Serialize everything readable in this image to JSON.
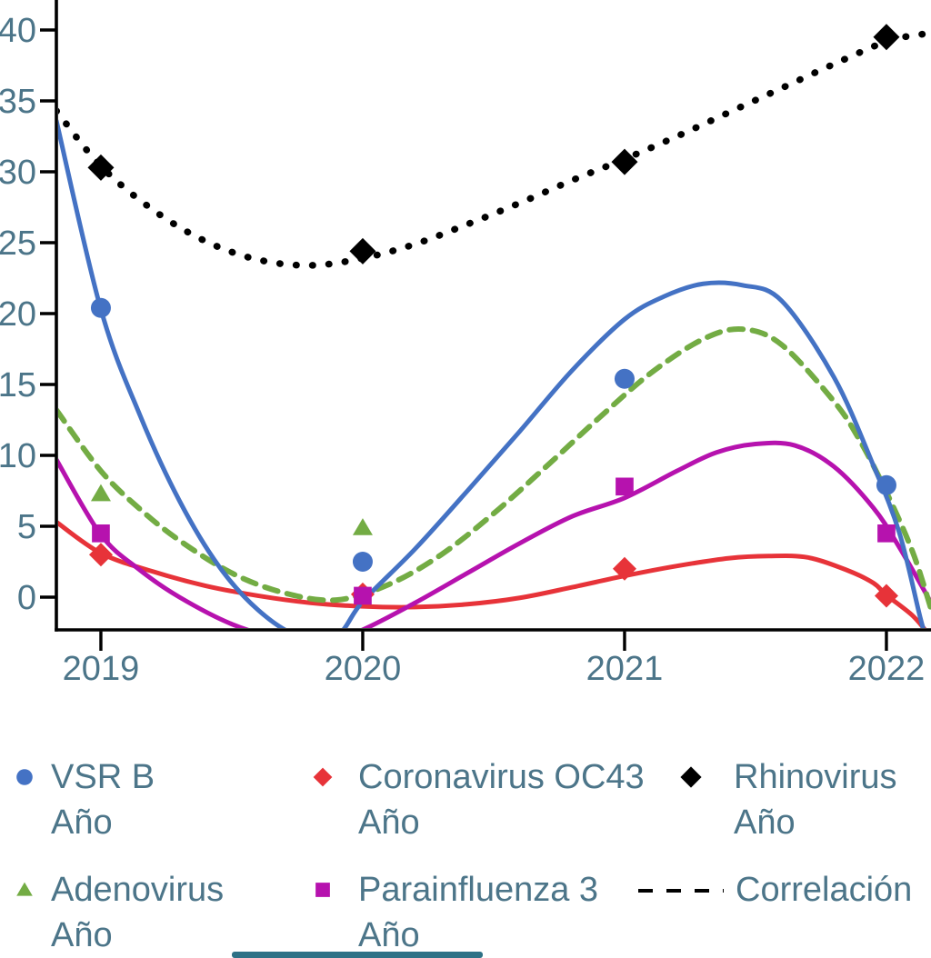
{
  "colors": {
    "background": "#ffffff",
    "axis_line": "#000000",
    "axis_text": "#4c7589",
    "legend_text": "#4c7589",
    "bottom_bar": "#2e7186"
  },
  "axes": {
    "x_ticks": [
      "2019",
      "2020",
      "2021",
      "2022"
    ],
    "y_ticks": [
      "0",
      "5",
      "10",
      "15",
      "20",
      "25",
      "30",
      "35",
      "40"
    ]
  },
  "chart_data": {
    "type": "scatter",
    "title": "",
    "xlabel": "",
    "ylabel": "",
    "grid": false,
    "legend_position": "bottom",
    "x_categories": [
      2019,
      2020,
      2021,
      2022
    ],
    "xlim": [
      2018.83,
      2022.18
    ],
    "ylim": [
      -2.3,
      42.1
    ],
    "y_ticks": [
      0,
      5,
      10,
      15,
      20,
      25,
      30,
      35,
      40
    ],
    "series": [
      {
        "name": "VSR B",
        "sublabel": "Año",
        "color": "#4472c4",
        "marker": "circle",
        "marker_size": 11,
        "line": "solid",
        "values": [
          20.4,
          2.5,
          15.4,
          7.9
        ],
        "trend": [
          [
            2018.83,
            33.6
          ],
          [
            2019.0,
            20.3
          ],
          [
            2019.15,
            12.8
          ],
          [
            2019.3,
            6.8
          ],
          [
            2019.45,
            2.2
          ],
          [
            2019.6,
            -0.9
          ],
          [
            2019.75,
            -2.7
          ],
          [
            2019.9,
            -2.7
          ],
          [
            2020.0,
            -0.3
          ],
          [
            2020.2,
            3.4
          ],
          [
            2020.4,
            7.5
          ],
          [
            2020.6,
            11.7
          ],
          [
            2020.8,
            16.0
          ],
          [
            2021.0,
            19.6
          ],
          [
            2021.15,
            21.2
          ],
          [
            2021.3,
            22.1
          ],
          [
            2021.45,
            22.0
          ],
          [
            2021.6,
            20.9
          ],
          [
            2021.8,
            15.5
          ],
          [
            2021.95,
            9.3
          ],
          [
            2022.05,
            4.5
          ],
          [
            2022.13,
            -1.5
          ],
          [
            2022.15,
            -2.7
          ]
        ]
      },
      {
        "name": "Coronavirus OC43",
        "sublabel": "Año",
        "color": "#e73339",
        "marker": "diamond",
        "marker_size": 13,
        "line": "solid",
        "values": [
          3.0,
          0.2,
          2.0,
          0.1
        ],
        "trend": [
          [
            2018.83,
            5.3
          ],
          [
            2019.0,
            3.1
          ],
          [
            2019.2,
            1.8
          ],
          [
            2019.4,
            0.8
          ],
          [
            2019.6,
            0.1
          ],
          [
            2019.8,
            -0.4
          ],
          [
            2020.0,
            -0.65
          ],
          [
            2020.2,
            -0.7
          ],
          [
            2020.4,
            -0.5
          ],
          [
            2020.6,
            -0.05
          ],
          [
            2020.8,
            0.7
          ],
          [
            2021.0,
            1.5
          ],
          [
            2021.2,
            2.2
          ],
          [
            2021.4,
            2.75
          ],
          [
            2021.55,
            2.9
          ],
          [
            2021.7,
            2.8
          ],
          [
            2021.85,
            1.9
          ],
          [
            2021.95,
            1.0
          ],
          [
            2022.0,
            0.15
          ],
          [
            2022.1,
            -1.3
          ],
          [
            2022.16,
            -2.6
          ]
        ]
      },
      {
        "name": "Rhinovirus",
        "sublabel": "Año",
        "color": "#000000",
        "marker": "diamond",
        "marker_size": 14.5,
        "line": "dotted",
        "values": [
          30.3,
          24.4,
          30.7,
          39.5
        ],
        "trend": [
          [
            2018.83,
            34.3
          ],
          [
            2019.0,
            30.4
          ],
          [
            2019.2,
            27.3
          ],
          [
            2019.4,
            25.1
          ],
          [
            2019.6,
            23.8
          ],
          [
            2019.8,
            23.4
          ],
          [
            2020.0,
            23.9
          ],
          [
            2020.2,
            24.9
          ],
          [
            2020.4,
            26.3
          ],
          [
            2020.6,
            27.8
          ],
          [
            2020.8,
            29.4
          ],
          [
            2021.0,
            30.9
          ],
          [
            2021.2,
            32.5
          ],
          [
            2021.4,
            34.2
          ],
          [
            2021.6,
            35.9
          ],
          [
            2021.8,
            37.6
          ],
          [
            2022.0,
            39.2
          ],
          [
            2022.1,
            39.6
          ],
          [
            2022.18,
            39.8
          ]
        ]
      },
      {
        "name": "Adenovirus",
        "sublabel": "Año",
        "color": "#73ac44",
        "marker": "triangle",
        "marker_size": 11,
        "line": "dashed",
        "values": [
          7.3,
          4.9,
          null,
          null
        ],
        "trend": [
          [
            2018.83,
            13.2
          ],
          [
            2019.0,
            8.9
          ],
          [
            2019.15,
            6.2
          ],
          [
            2019.3,
            4.0
          ],
          [
            2019.5,
            1.7
          ],
          [
            2019.7,
            0.3
          ],
          [
            2019.9,
            -0.2
          ],
          [
            2020.1,
            0.9
          ],
          [
            2020.3,
            3.0
          ],
          [
            2020.5,
            5.9
          ],
          [
            2020.7,
            9.2
          ],
          [
            2020.9,
            12.6
          ],
          [
            2021.1,
            15.8
          ],
          [
            2021.3,
            18.2
          ],
          [
            2021.45,
            18.9
          ],
          [
            2021.6,
            17.8
          ],
          [
            2021.8,
            13.8
          ],
          [
            2021.9,
            11.0
          ],
          [
            2022.0,
            7.4
          ],
          [
            2022.1,
            3.2
          ],
          [
            2022.17,
            -0.8
          ]
        ]
      },
      {
        "name": "Parainfluenza 3",
        "sublabel": "Año",
        "color": "#b612ae",
        "marker": "square",
        "marker_size": 12,
        "line": "solid",
        "values": [
          4.5,
          0.1,
          7.8,
          4.5
        ],
        "trend": [
          [
            2018.83,
            9.7
          ],
          [
            2019.0,
            4.4
          ],
          [
            2019.15,
            1.9
          ],
          [
            2019.3,
            0.0
          ],
          [
            2019.5,
            -1.9
          ],
          [
            2019.7,
            -3.0
          ],
          [
            2019.85,
            -3.2
          ],
          [
            2020.0,
            -2.3
          ],
          [
            2020.2,
            -0.4
          ],
          [
            2020.4,
            1.7
          ],
          [
            2020.6,
            3.8
          ],
          [
            2020.8,
            5.7
          ],
          [
            2021.0,
            7.0
          ],
          [
            2021.2,
            8.9
          ],
          [
            2021.35,
            10.2
          ],
          [
            2021.5,
            10.8
          ],
          [
            2021.65,
            10.7
          ],
          [
            2021.8,
            9.2
          ],
          [
            2021.95,
            6.3
          ],
          [
            2022.05,
            3.5
          ],
          [
            2022.18,
            -0.7
          ]
        ]
      }
    ],
    "correlation": {
      "label": "Correlación",
      "line": "dashed",
      "color": "#000000"
    }
  }
}
